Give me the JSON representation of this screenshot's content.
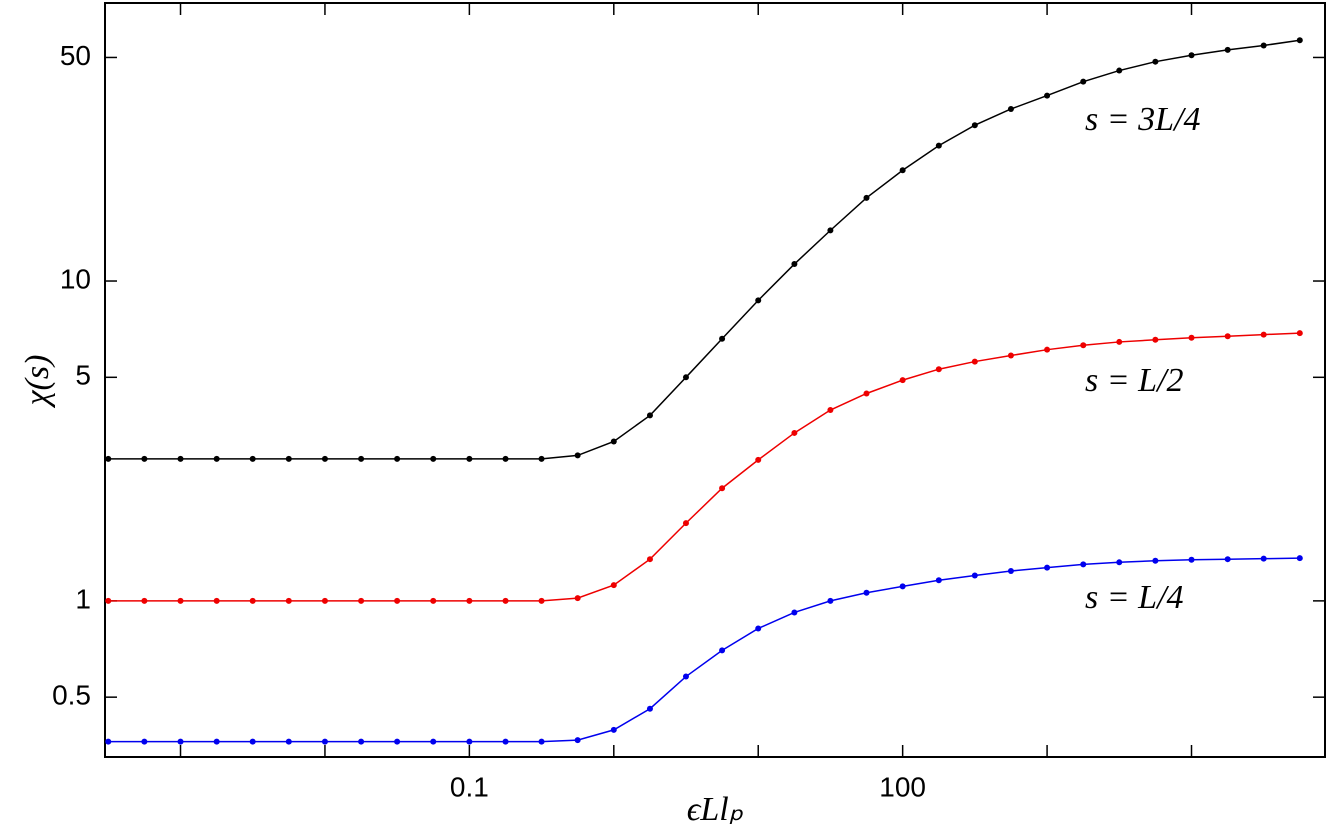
{
  "chart_data": {
    "type": "line",
    "log_x": true,
    "log_y": true,
    "x_label": "ϵLlₚ",
    "y_label": "χ(s)",
    "xlim": [
      0.0003,
      84000
    ],
    "ylim": [
      0.325,
      74
    ],
    "xticks": [
      0.1,
      100
    ],
    "xminorticks": [
      0.001,
      0.01,
      1,
      10,
      1000,
      10000
    ],
    "yticks": [
      0.5,
      1,
      5,
      10,
      50
    ],
    "x": [
      0.000316,
      0.000562,
      0.001,
      0.00178,
      0.00316,
      0.00562,
      0.01,
      0.0178,
      0.0316,
      0.0562,
      0.1,
      0.178,
      0.316,
      0.562,
      1,
      1.78,
      3.16,
      5.62,
      10,
      17.8,
      31.6,
      56.2,
      100,
      178,
      316,
      562,
      1000,
      1780,
      3160,
      5620,
      10000,
      17800,
      31600,
      56200
    ],
    "series": [
      {
        "name": "s = 3L/4",
        "color": "#000000",
        "values": [
          2.78,
          2.78,
          2.78,
          2.78,
          2.78,
          2.78,
          2.78,
          2.78,
          2.78,
          2.78,
          2.78,
          2.78,
          2.78,
          2.85,
          3.15,
          3.8,
          5.0,
          6.6,
          8.7,
          11.3,
          14.4,
          18.2,
          22.2,
          26.5,
          30.7,
          34.5,
          38,
          42,
          45.5,
          48.5,
          50.8,
          52.8,
          54.5,
          56.6
        ]
      },
      {
        "name": "s = L/2",
        "color": "#ee0000",
        "values": [
          1.0,
          1.0,
          1.0,
          1.0,
          1.0,
          1.0,
          1.0,
          1.0,
          1.0,
          1.0,
          1.0,
          1.0,
          1.0,
          1.02,
          1.12,
          1.35,
          1.75,
          2.25,
          2.76,
          3.35,
          3.95,
          4.45,
          4.9,
          5.3,
          5.6,
          5.85,
          6.1,
          6.3,
          6.45,
          6.55,
          6.65,
          6.72,
          6.8,
          6.87
        ]
      },
      {
        "name": "s = L/4",
        "color": "#0000ee",
        "values": [
          0.363,
          0.363,
          0.363,
          0.363,
          0.363,
          0.363,
          0.363,
          0.363,
          0.363,
          0.363,
          0.363,
          0.363,
          0.363,
          0.367,
          0.395,
          0.46,
          0.58,
          0.7,
          0.82,
          0.92,
          1.0,
          1.06,
          1.11,
          1.16,
          1.2,
          1.24,
          1.27,
          1.3,
          1.32,
          1.335,
          1.345,
          1.35,
          1.355,
          1.36
        ]
      }
    ]
  }
}
